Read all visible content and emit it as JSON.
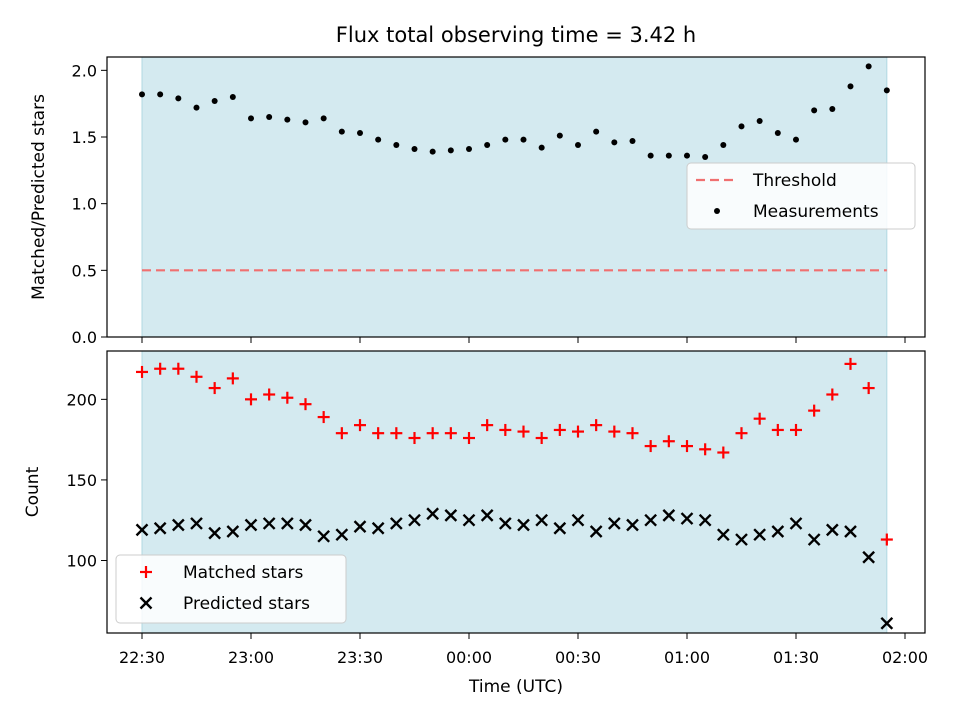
{
  "chart_data": [
    {
      "type": "scatter",
      "panel": "top",
      "title": "Flux total observing time = 3.42 h",
      "ylabel": "Matched/Predicted stars",
      "xlabel": "",
      "ylim": [
        0,
        2.1
      ],
      "y_ticks": [
        "0.0",
        "0.5",
        "1.0",
        "1.5",
        "2.0"
      ],
      "y_tick_values": [
        0,
        0.5,
        1.0,
        1.5,
        2.0
      ],
      "legend_position": "right",
      "shaded_span": {
        "start": "22:30",
        "end": "01:55",
        "color": "#d4eaf0"
      },
      "threshold": {
        "name": "Threshold",
        "value": 0.5,
        "start": "22:30",
        "end": "01:55",
        "color": "#f07070",
        "style": "dashed"
      },
      "series": [
        {
          "name": "Measurements",
          "color": "#000000",
          "marker": "dot",
          "x": [
            "22:30",
            "22:35",
            "22:40",
            "22:45",
            "22:50",
            "22:55",
            "23:00",
            "23:05",
            "23:10",
            "23:15",
            "23:20",
            "23:25",
            "23:30",
            "23:35",
            "23:40",
            "23:45",
            "23:50",
            "23:55",
            "00:00",
            "00:05",
            "00:10",
            "00:15",
            "00:20",
            "00:25",
            "00:30",
            "00:35",
            "00:40",
            "00:45",
            "00:50",
            "00:55",
            "01:00",
            "01:05",
            "01:10",
            "01:15",
            "01:20",
            "01:25",
            "01:30",
            "01:35",
            "01:40",
            "01:45",
            "01:50",
            "01:55"
          ],
          "y": [
            1.82,
            1.82,
            1.79,
            1.72,
            1.77,
            1.8,
            1.64,
            1.65,
            1.63,
            1.61,
            1.64,
            1.54,
            1.53,
            1.48,
            1.44,
            1.41,
            1.39,
            1.4,
            1.41,
            1.44,
            1.48,
            1.48,
            1.42,
            1.51,
            1.44,
            1.54,
            1.46,
            1.47,
            1.36,
            1.36,
            1.36,
            1.35,
            1.44,
            1.58,
            1.62,
            1.53,
            1.48,
            1.7,
            1.71,
            1.88,
            2.03,
            1.85
          ]
        }
      ]
    },
    {
      "type": "scatter",
      "panel": "bottom",
      "title": "",
      "ylabel": "Count",
      "xlabel": "Time (UTC)",
      "ylim": [
        55,
        230
      ],
      "y_ticks": [
        "100",
        "150",
        "200"
      ],
      "y_tick_values": [
        100,
        150,
        200
      ],
      "x_ticks": [
        "22:30",
        "23:00",
        "23:30",
        "00:00",
        "00:30",
        "01:00",
        "01:30",
        "02:00"
      ],
      "legend_position": "lower-left",
      "shaded_span": {
        "start": "22:30",
        "end": "01:55",
        "color": "#d4eaf0"
      },
      "series": [
        {
          "name": "Matched stars",
          "color": "#ff0000",
          "marker": "plus",
          "x": [
            "22:30",
            "22:35",
            "22:40",
            "22:45",
            "22:50",
            "22:55",
            "23:00",
            "23:05",
            "23:10",
            "23:15",
            "23:20",
            "23:25",
            "23:30",
            "23:35",
            "23:40",
            "23:45",
            "23:50",
            "23:55",
            "00:00",
            "00:05",
            "00:10",
            "00:15",
            "00:20",
            "00:25",
            "00:30",
            "00:35",
            "00:40",
            "00:45",
            "00:50",
            "00:55",
            "01:00",
            "01:05",
            "01:10",
            "01:15",
            "01:20",
            "01:25",
            "01:30",
            "01:35",
            "01:40",
            "01:45",
            "01:50",
            "01:55"
          ],
          "y": [
            217,
            219,
            219,
            214,
            207,
            213,
            200,
            203,
            201,
            197,
            189,
            179,
            184,
            179,
            179,
            176,
            179,
            179,
            176,
            184,
            181,
            180,
            176,
            181,
            180,
            184,
            180,
            179,
            171,
            174,
            171,
            169,
            167,
            179,
            188,
            181,
            181,
            193,
            203,
            222,
            207,
            113
          ]
        },
        {
          "name": "Predicted stars",
          "color": "#000000",
          "marker": "x",
          "x": [
            "22:30",
            "22:35",
            "22:40",
            "22:45",
            "22:50",
            "22:55",
            "23:00",
            "23:05",
            "23:10",
            "23:15",
            "23:20",
            "23:25",
            "23:30",
            "23:35",
            "23:40",
            "23:45",
            "23:50",
            "23:55",
            "00:00",
            "00:05",
            "00:10",
            "00:15",
            "00:20",
            "00:25",
            "00:30",
            "00:35",
            "00:40",
            "00:45",
            "00:50",
            "00:55",
            "01:00",
            "01:05",
            "01:10",
            "01:15",
            "01:20",
            "01:25",
            "01:30",
            "01:35",
            "01:40",
            "01:45",
            "01:50",
            "01:55"
          ],
          "y": [
            119,
            120,
            122,
            123,
            117,
            118,
            122,
            123,
            123,
            122,
            115,
            116,
            121,
            120,
            123,
            125,
            129,
            128,
            125,
            128,
            123,
            122,
            125,
            120,
            125,
            118,
            123,
            122,
            125,
            128,
            126,
            125,
            116,
            113,
            116,
            118,
            123,
            113,
            119,
            118,
            102,
            61
          ]
        }
      ]
    }
  ]
}
